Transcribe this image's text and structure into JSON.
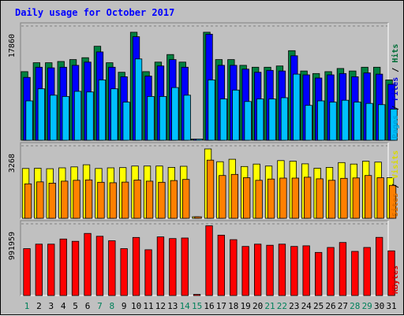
{
  "chart_data": {
    "type": "bar",
    "title": "Daily usage for October 2017",
    "x": [
      "1",
      "2",
      "3",
      "4",
      "5",
      "6",
      "7",
      "8",
      "9",
      "10",
      "11",
      "12",
      "13",
      "14",
      "15",
      "16",
      "17",
      "18",
      "19",
      "20",
      "21",
      "22",
      "23",
      "24",
      "25",
      "26",
      "27",
      "28",
      "29",
      "30",
      "31"
    ],
    "weekend_days": [
      "1",
      "7",
      "8",
      "14",
      "15",
      "21",
      "22",
      "28",
      "29"
    ],
    "panels": [
      {
        "id": "hits",
        "ymax_label": "17860",
        "ylim": [
          0,
          17860
        ],
        "legend": [
          "Pages",
          "Files",
          "Hits"
        ],
        "series": [
          {
            "name": "Hits",
            "color": "#008040",
            "values": [
              10800,
              12200,
              12200,
              12400,
              12700,
              13000,
              14800,
              12200,
              10700,
              17000,
              10800,
              12300,
              13500,
              12300,
              200,
              17000,
              12700,
              12700,
              11800,
              11500,
              11500,
              11700,
              14100,
              10900,
              10500,
              10800,
              11300,
              10900,
              11500,
              11500,
              9500
            ]
          },
          {
            "name": "Files",
            "color": "#0000ff",
            "values": [
              9900,
              11500,
              11400,
              11500,
              11800,
              12300,
              13900,
              11500,
              10000,
              16300,
              10100,
              11700,
              12700,
              11500,
              200,
              16700,
              11800,
              11800,
              11200,
              10700,
              11000,
              10900,
              13300,
              10300,
              9800,
              10300,
              10500,
              10000,
              10600,
              10400,
              8800
            ]
          },
          {
            "name": "Pages",
            "color": "#00c0ff",
            "values": [
              6200,
              8100,
              7100,
              6900,
              7700,
              7600,
              9500,
              8100,
              6000,
              12800,
              6900,
              6900,
              8300,
              7100,
              200,
              9500,
              6500,
              7900,
              6100,
              6500,
              6500,
              6700,
              10400,
              5500,
              6200,
              6000,
              6300,
              6000,
              5800,
              5600,
              4900
            ]
          }
        ]
      },
      {
        "id": "visits",
        "ymax_label": "3268",
        "ylim": [
          0,
          3268
        ],
        "legend": [
          "Sites",
          "Visits"
        ],
        "series": [
          {
            "name": "Visits",
            "color": "#ffff00",
            "values": [
              2270,
              2280,
              2260,
              2300,
              2340,
              2440,
              2270,
              2300,
              2310,
              2380,
              2380,
              2380,
              2320,
              2370,
              70,
              3160,
              2580,
              2690,
              2360,
              2470,
              2380,
              2630,
              2600,
              2480,
              2280,
              2320,
              2540,
              2470,
              2600,
              2560,
              1850
            ]
          },
          {
            "name": "Sites",
            "color": "#ff8000",
            "values": [
              1570,
              1660,
              1600,
              1690,
              1730,
              1750,
              1640,
              1620,
              1650,
              1740,
              1690,
              1640,
              1720,
              1770,
              70,
              2650,
              1950,
              2000,
              1850,
              1730,
              1790,
              1830,
              1830,
              1870,
              1800,
              1730,
              1820,
              1840,
              1950,
              1850,
              1500
            ]
          }
        ]
      },
      {
        "id": "kbytes",
        "ymax_label": "991959",
        "ylim": [
          0,
          991959
        ],
        "legend": [
          "KBytes"
        ],
        "series": [
          {
            "name": "KBytes",
            "color": "#ff0000",
            "values": [
              656000,
              719000,
              719000,
              790000,
              758000,
              868000,
              829000,
              766000,
              656000,
              812000,
              640000,
              820000,
              797000,
              805000,
              15000,
              975000,
              844000,
              781000,
              687000,
              719000,
              703000,
              719000,
              687000,
              695000,
              603000,
              672000,
              742000,
              617000,
              672000,
              813000,
              625000
            ]
          }
        ]
      }
    ]
  }
}
